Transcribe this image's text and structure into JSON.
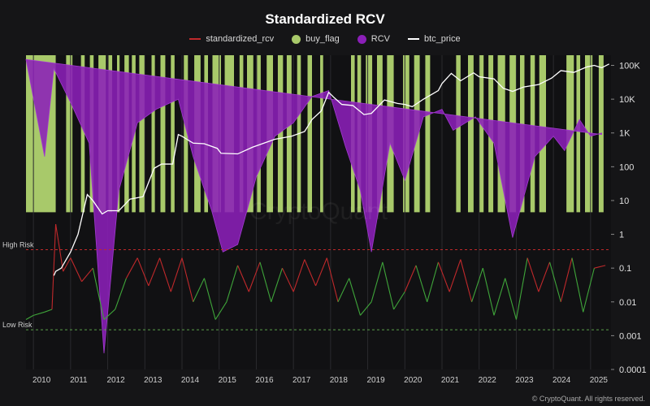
{
  "title": "Standardized RCV",
  "legend": [
    {
      "label": "standardized_rcv",
      "color": "#c0292b",
      "kind": "line"
    },
    {
      "label": "buy_flag",
      "color": "#a8c96a",
      "kind": "dot"
    },
    {
      "label": "RCV",
      "color": "#8b1fb8",
      "kind": "dot"
    },
    {
      "label": "btc_price",
      "color": "#ffffff",
      "kind": "line"
    }
  ],
  "watermark": "CryptoQuant",
  "footer": "© CryptoQuant. All rights reserved.",
  "chart_data": {
    "type": "line",
    "x_ticks": [
      "2010",
      "2011",
      "2012",
      "2013",
      "2014",
      "2015",
      "2016",
      "2017",
      "2018",
      "2019",
      "2020",
      "2021",
      "2022",
      "2023",
      "2024",
      "2025"
    ],
    "y_scale": "log",
    "y_ticks": [
      "100K",
      "10K",
      "1K",
      "100",
      "10",
      "1",
      "0.1",
      "0.01",
      "0.001",
      "0.0001"
    ],
    "y_range": [
      0.0001,
      200000
    ],
    "reference_lines": [
      {
        "label": "High Risk",
        "value": 0.35
      },
      {
        "label": "Low Risk",
        "value": 0.0015
      }
    ],
    "buy_flag_periods": [
      [
        2009.8,
        2010.6
      ],
      [
        2010.88,
        2011.05
      ],
      [
        2011.28,
        2011.38
      ],
      [
        2011.52,
        2011.62
      ],
      [
        2011.75,
        2011.95
      ],
      [
        2012.02,
        2012.12
      ],
      [
        2012.25,
        2012.32
      ],
      [
        2012.45,
        2012.57
      ],
      [
        2012.65,
        2012.75
      ],
      [
        2012.85,
        2013.0
      ],
      [
        2013.18,
        2013.27
      ],
      [
        2013.42,
        2013.55
      ],
      [
        2013.7,
        2013.8
      ],
      [
        2014.05,
        2014.16
      ],
      [
        2014.33,
        2014.5
      ],
      [
        2014.6,
        2014.7
      ],
      [
        2014.82,
        2015.05
      ],
      [
        2015.15,
        2015.4
      ],
      [
        2015.55,
        2015.65
      ],
      [
        2015.75,
        2015.92
      ],
      [
        2016.02,
        2016.12
      ],
      [
        2016.28,
        2016.45
      ],
      [
        2016.58,
        2016.72
      ],
      [
        2016.82,
        2016.95
      ],
      [
        2017.1,
        2017.2
      ],
      [
        2017.38,
        2017.5
      ],
      [
        2017.72,
        2017.8
      ],
      [
        2018.55,
        2018.65
      ],
      [
        2018.72,
        2018.82
      ],
      [
        2018.95,
        2019.12
      ],
      [
        2019.25,
        2019.4
      ],
      [
        2019.52,
        2019.7
      ],
      [
        2019.95,
        2020.12
      ],
      [
        2020.25,
        2020.4
      ],
      [
        2020.55,
        2020.68
      ],
      [
        2021.38,
        2021.5
      ],
      [
        2021.7,
        2021.85
      ],
      [
        2022.0,
        2022.12
      ],
      [
        2022.25,
        2022.38
      ],
      [
        2022.5,
        2022.7
      ],
      [
        2022.82,
        2023.0
      ],
      [
        2023.1,
        2023.22
      ],
      [
        2023.38,
        2023.5
      ],
      [
        2023.62,
        2023.8
      ],
      [
        2024.35,
        2024.55
      ],
      [
        2024.62,
        2024.72
      ],
      [
        2024.85,
        2025.05
      ],
      [
        2025.22,
        2025.35
      ]
    ],
    "series": [
      {
        "name": "btc_price",
        "x": [
          2010.55,
          2010.6,
          2010.75,
          2011.0,
          2011.2,
          2011.45,
          2011.6,
          2011.85,
          2012.0,
          2012.3,
          2012.6,
          2012.95,
          2013.25,
          2013.45,
          2013.75,
          2013.9,
          2014.0,
          2014.3,
          2014.6,
          2014.95,
          2015.05,
          2015.5,
          2015.9,
          2016.5,
          2016.95,
          2017.3,
          2017.5,
          2017.75,
          2017.95,
          2018.1,
          2018.3,
          2018.6,
          2018.9,
          2019.1,
          2019.45,
          2019.8,
          2020.0,
          2020.2,
          2020.5,
          2020.9,
          2021.0,
          2021.25,
          2021.5,
          2021.85,
          2022.0,
          2022.4,
          2022.65,
          2022.9,
          2023.2,
          2023.6,
          2023.95,
          2024.2,
          2024.55,
          2024.9,
          2025.1,
          2025.3,
          2025.5
        ],
        "values": [
          0.06,
          0.08,
          0.1,
          0.3,
          1,
          15,
          10,
          4,
          5,
          5,
          11,
          13,
          90,
          120,
          120,
          900,
          800,
          500,
          480,
          350,
          250,
          240,
          380,
          650,
          800,
          1100,
          2500,
          4500,
          16000,
          11000,
          7000,
          6500,
          3500,
          3800,
          9500,
          7500,
          7000,
          6000,
          10000,
          18000,
          29000,
          58000,
          35000,
          60000,
          46000,
          40000,
          21000,
          17000,
          23000,
          27000,
          42000,
          70000,
          62000,
          90000,
          100000,
          85000,
          110000
        ]
      },
      {
        "name": "RCV",
        "x": [
          2009.8,
          2010.3,
          2010.55,
          2011.0,
          2011.5,
          2011.9,
          2012.3,
          2012.8,
          2013.3,
          2013.9,
          2014.3,
          2014.8,
          2015.1,
          2015.5,
          2016.0,
          2016.5,
          2017.0,
          2017.5,
          2017.95,
          2018.4,
          2018.8,
          2019.1,
          2019.6,
          2020.0,
          2020.5,
          2021.0,
          2021.3,
          2021.9,
          2022.4,
          2022.9,
          2023.5,
          2024.0,
          2024.3,
          2024.7,
          2025.0,
          2025.3
        ],
        "values": [
          150000,
          200,
          80000,
          8000,
          500,
          0.0003,
          20,
          2000,
          5000,
          10000,
          200,
          5,
          0.3,
          0.5,
          50,
          800,
          2000,
          12000,
          18000,
          400,
          20,
          0.3,
          500,
          40,
          3000,
          5000,
          1200,
          3000,
          500,
          0.8,
          200,
          800,
          300,
          2500,
          800,
          1000
        ]
      },
      {
        "name": "standardized_rcv",
        "x": [
          2009.8,
          2010.0,
          2010.3,
          2010.5,
          2010.6,
          2010.8,
          2011.0,
          2011.3,
          2011.6,
          2011.9,
          2012.2,
          2012.5,
          2012.8,
          2013.1,
          2013.4,
          2013.7,
          2014.0,
          2014.3,
          2014.6,
          2014.9,
          2015.2,
          2015.5,
          2015.8,
          2016.1,
          2016.4,
          2016.7,
          2017.0,
          2017.3,
          2017.6,
          2017.9,
          2018.2,
          2018.5,
          2018.8,
          2019.1,
          2019.4,
          2019.7,
          2020.0,
          2020.3,
          2020.6,
          2020.9,
          2021.2,
          2021.5,
          2021.8,
          2022.1,
          2022.4,
          2022.7,
          2023.0,
          2023.3,
          2023.6,
          2023.9,
          2024.2,
          2024.5,
          2024.8,
          2025.1,
          2025.4
        ],
        "values": [
          0.003,
          0.004,
          0.005,
          0.006,
          2,
          0.08,
          0.2,
          0.04,
          0.1,
          0.003,
          0.006,
          0.05,
          0.2,
          0.03,
          0.2,
          0.02,
          0.2,
          0.01,
          0.05,
          0.003,
          0.01,
          0.12,
          0.02,
          0.15,
          0.01,
          0.1,
          0.02,
          0.18,
          0.03,
          0.2,
          0.01,
          0.05,
          0.004,
          0.01,
          0.15,
          0.006,
          0.02,
          0.12,
          0.01,
          0.15,
          0.02,
          0.18,
          0.01,
          0.1,
          0.004,
          0.05,
          0.003,
          0.2,
          0.02,
          0.15,
          0.01,
          0.2,
          0.005,
          0.1,
          0.12
        ]
      }
    ]
  }
}
